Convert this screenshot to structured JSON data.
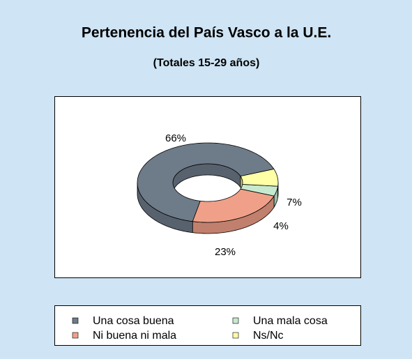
{
  "chart_data": {
    "type": "donut3d",
    "title": "Pertenencia del País Vasco a la U.E.",
    "subtitle": "(Totales 15-29 años)",
    "categories": [
      "Una cosa buena",
      "Ni buena ni mala",
      "Una mala cosa",
      "Ns/Nc"
    ],
    "values": [
      66,
      23,
      4,
      7
    ],
    "value_labels": [
      "66%",
      "23%",
      "4%",
      "7%"
    ],
    "colors": [
      "#6e7b89",
      "#f0a088",
      "#c6ead0",
      "#ffffa6"
    ],
    "legend": "bottom"
  }
}
